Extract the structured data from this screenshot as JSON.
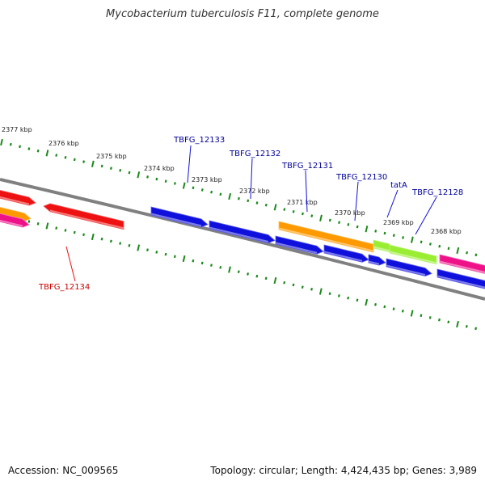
{
  "title": "Mycobacterium tuberculosis F11, complete genome",
  "accession": "Accession: NC_009565",
  "info": "Topology: circular; Length: 4,424,435 bp; Genes: 3,989",
  "colors": {
    "backbone": "#808080",
    "tick": "#1a8a1a",
    "blue": "#1010dd",
    "red": "#ee1111",
    "orange": "#ff9900",
    "green": "#99ee33",
    "magenta": "#ee1188",
    "label_blue": "#000099",
    "label_red": "#cc0000"
  },
  "ruler_labels": [
    {
      "text": "2377 kbp"
    },
    {
      "text": "2376 kbp"
    },
    {
      "text": "2375 kbp"
    },
    {
      "text": "2374 kbp"
    },
    {
      "text": "2373 kbp"
    },
    {
      "text": "2372 kbp"
    },
    {
      "text": "2371 kbp"
    },
    {
      "text": "2370 kbp"
    },
    {
      "text": "2369 kbp"
    },
    {
      "text": "2368 kbp"
    }
  ],
  "gene_labels": [
    {
      "text": "TBFG_12133",
      "color": "blue"
    },
    {
      "text": "TBFG_12132",
      "color": "blue"
    },
    {
      "text": "TBFG_12131",
      "color": "blue"
    },
    {
      "text": "TBFG_12130",
      "color": "blue"
    },
    {
      "text": "tatA",
      "color": "blue"
    },
    {
      "text": "TBFG_12128",
      "color": "blue"
    },
    {
      "text": "TBFG_12134",
      "color": "red"
    }
  ],
  "genes": [
    {
      "color": "red"
    },
    {
      "color": "orange"
    },
    {
      "color": "magenta"
    },
    {
      "color": "red"
    },
    {
      "color": "blue"
    },
    {
      "color": "blue"
    },
    {
      "color": "orange"
    },
    {
      "color": "green"
    },
    {
      "color": "green"
    },
    {
      "color": "blue"
    },
    {
      "color": "blue"
    },
    {
      "color": "blue"
    },
    {
      "color": "blue"
    },
    {
      "color": "magenta"
    },
    {
      "color": "blue"
    }
  ]
}
